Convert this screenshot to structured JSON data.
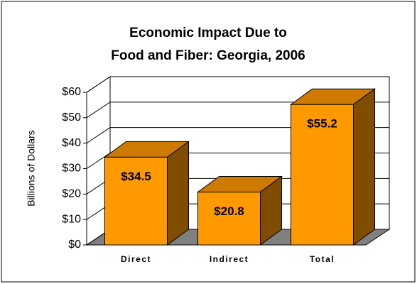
{
  "chart_data": {
    "type": "bar3d",
    "title": [
      "Economic Impact Due to",
      "Food and Fiber:  Georgia, 2006"
    ],
    "y_label": "Billions of Dollars",
    "categories": [
      "Direct",
      "Indirect",
      "Total"
    ],
    "values": [
      34.5,
      20.8,
      55.2
    ],
    "value_labels": [
      "$34.5",
      "$20.8",
      "$55.2"
    ],
    "color": "#ff9900",
    "ylim": [
      0,
      60
    ],
    "yticks": [
      {
        "value": 0,
        "label": "$0"
      },
      {
        "value": 10,
        "label": "$10"
      },
      {
        "value": 20,
        "label": "$20"
      },
      {
        "value": 30,
        "label": "$30"
      },
      {
        "value": 40,
        "label": "$40"
      },
      {
        "value": 50,
        "label": "$50"
      },
      {
        "value": 60,
        "label": "$60"
      }
    ],
    "grid": true
  }
}
